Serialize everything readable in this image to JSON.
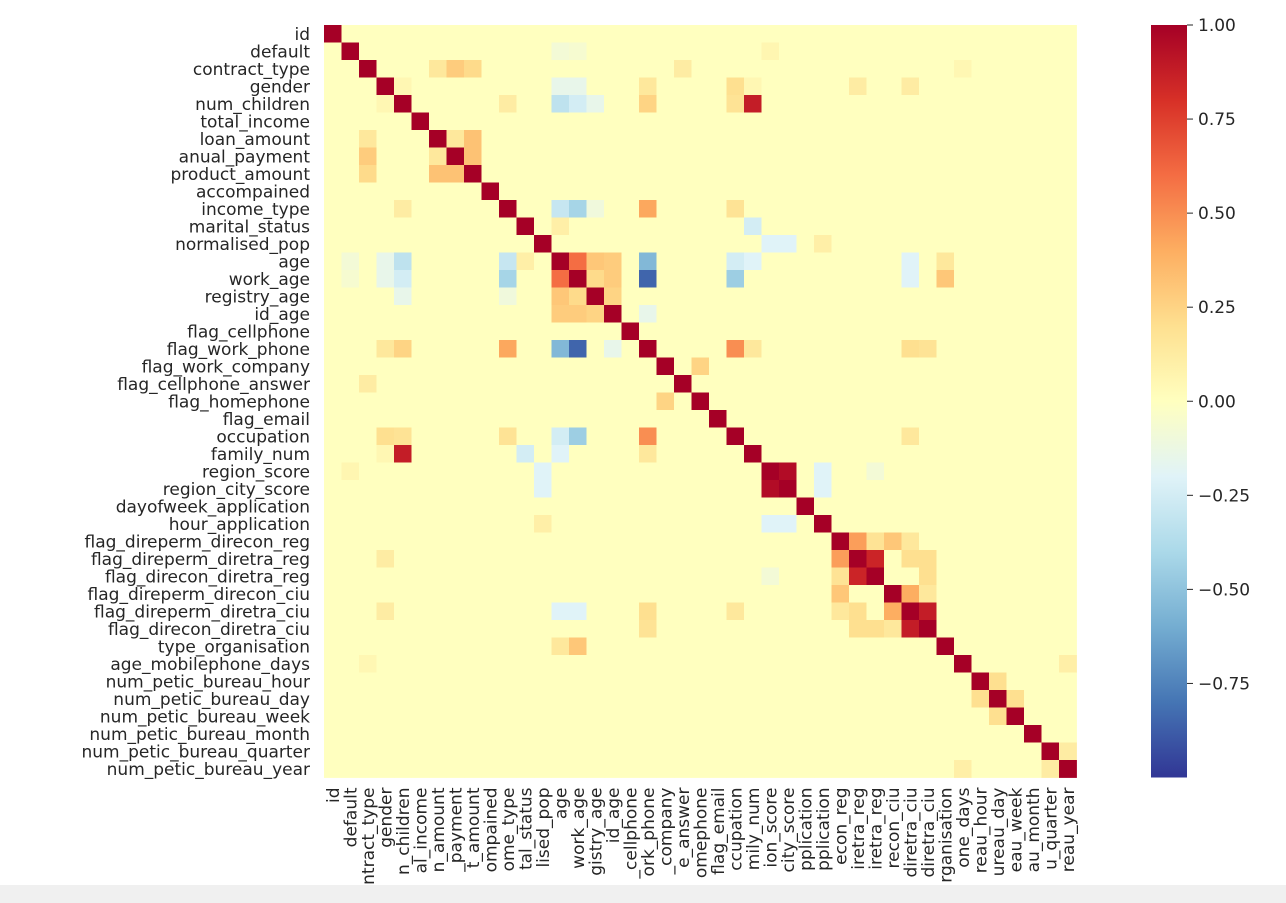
{
  "chart_data": {
    "type": "heatmap",
    "title": "",
    "xlabel": "",
    "ylabel": "",
    "labels": [
      "id",
      "default",
      "contract_type",
      "gender",
      "num_children",
      "total_income",
      "loan_amount",
      "anual_payment",
      "product_amount",
      "accompained",
      "income_type",
      "marital_status",
      "normalised_pop",
      "age",
      "work_age",
      "registry_age",
      "id_age",
      "flag_cellphone",
      "flag_work_phone",
      "flag_work_company",
      "flag_cellphone_answer",
      "flag_homephone",
      "flag_email",
      "occupation",
      "family_num",
      "region_score",
      "region_city_score",
      "dayofweek_application",
      "hour_application",
      "flag_direperm_direcon_reg",
      "flag_direperm_diretra_reg",
      "flag_direcon_diretra_reg",
      "flag_direperm_direcon_ciu",
      "flag_direperm_diretra_ciu",
      "flag_direcon_diretra_ciu",
      "type_organisation",
      "age_mobilephone_days",
      "num_petic_bureau_hour",
      "num_petic_bureau_day",
      "num_petic_bureau_week",
      "num_petic_bureau_month",
      "num_petic_bureau_quarter",
      "num_petic_bureau_year"
    ],
    "x_tick_labels": [
      "id",
      "default",
      "ntract_type",
      "gender",
      "n_children",
      "al_income",
      "n_amount",
      "_payment",
      "t_amount",
      "ompained",
      "ome_type",
      "tal_status",
      "lised_pop",
      "age",
      "work_age",
      "gistry_age",
      "id_age",
      "_cellphone",
      "ork_phone",
      "_company",
      "e_answer",
      "omephone",
      "flag_email",
      "ccupation",
      "mily_num",
      "ion_score",
      "city_score",
      "pplication",
      "pplication",
      "econ_reg",
      "iretra_reg",
      "iretra_reg",
      "recon_ciu",
      "diretra_ciu",
      "diretra_ciu",
      "rganisation",
      "one_days",
      "reau_hour",
      "ureau_day",
      "eau_week",
      "au_month",
      "u_quarter",
      "reau_year"
    ],
    "colorbar": {
      "colormap": "RdYlBu_r",
      "min": -1.0,
      "max": 1.0,
      "ticks": [
        1.0,
        0.75,
        0.5,
        0.25,
        0.0,
        -0.25,
        -0.5,
        -0.75
      ],
      "tick_labels": [
        "1.00",
        "0.75",
        "0.50",
        "0.25",
        "0.00",
        "−0.25",
        "−0.50",
        "−0.75"
      ]
    },
    "default_value": 0.0,
    "correlations": [
      [
        "contract_type",
        "anual_payment",
        0.28
      ],
      [
        "contract_type",
        "product_amount",
        0.22
      ],
      [
        "contract_type",
        "loan_amount",
        0.15
      ],
      [
        "contract_type",
        "flag_cellphone_answer",
        0.12
      ],
      [
        "default",
        "age",
        -0.08
      ],
      [
        "default",
        "work_age",
        -0.06
      ],
      [
        "default",
        "region_score",
        0.06
      ],
      [
        "gender",
        "num_children",
        0.05
      ],
      [
        "gender",
        "age",
        -0.15
      ],
      [
        "gender",
        "work_age",
        -0.15
      ],
      [
        "gender",
        "flag_work_phone",
        0.15
      ],
      [
        "gender",
        "occupation",
        0.2
      ],
      [
        "gender",
        "flag_direperm_diretra_reg",
        0.12
      ],
      [
        "gender",
        "flag_direperm_diretra_ciu",
        0.12
      ],
      [
        "gender",
        "family_num",
        0.05
      ],
      [
        "num_children",
        "family_num",
        0.88
      ],
      [
        "num_children",
        "age",
        -0.33
      ],
      [
        "num_children",
        "work_age",
        -0.25
      ],
      [
        "num_children",
        "registry_age",
        -0.15
      ],
      [
        "num_children",
        "flag_work_phone",
        0.25
      ],
      [
        "num_children",
        "income_type",
        0.12
      ],
      [
        "num_children",
        "occupation",
        0.18
      ],
      [
        "loan_amount",
        "anual_payment",
        0.15
      ],
      [
        "loan_amount",
        "product_amount",
        0.32
      ],
      [
        "anual_payment",
        "product_amount",
        0.32
      ],
      [
        "income_type",
        "age",
        -0.3
      ],
      [
        "income_type",
        "work_age",
        -0.42
      ],
      [
        "income_type",
        "flag_work_phone",
        0.42
      ],
      [
        "income_type",
        "occupation",
        0.18
      ],
      [
        "income_type",
        "registry_age",
        -0.1
      ],
      [
        "marital_status",
        "family_num",
        -0.25
      ],
      [
        "marital_status",
        "age",
        0.1
      ],
      [
        "normalised_pop",
        "region_score",
        -0.2
      ],
      [
        "normalised_pop",
        "region_city_score",
        -0.2
      ],
      [
        "normalised_pop",
        "hour_application",
        0.1
      ],
      [
        "age",
        "work_age",
        0.6
      ],
      [
        "age",
        "registry_age",
        0.3
      ],
      [
        "age",
        "id_age",
        0.28
      ],
      [
        "age",
        "flag_work_phone",
        -0.55
      ],
      [
        "age",
        "occupation",
        -0.25
      ],
      [
        "age",
        "family_num",
        -0.2
      ],
      [
        "age",
        "type_organisation",
        0.15
      ],
      [
        "age",
        "flag_direperm_diretra_ciu",
        -0.2
      ],
      [
        "work_age",
        "registry_age",
        0.22
      ],
      [
        "work_age",
        "id_age",
        0.28
      ],
      [
        "work_age",
        "flag_work_phone",
        -0.85
      ],
      [
        "work_age",
        "occupation",
        -0.45
      ],
      [
        "work_age",
        "type_organisation",
        0.3
      ],
      [
        "work_age",
        "flag_direperm_diretra_ciu",
        -0.2
      ],
      [
        "registry_age",
        "id_age",
        0.25
      ],
      [
        "id_age",
        "flag_work_phone",
        -0.15
      ],
      [
        "flag_work_phone",
        "occupation",
        0.5
      ],
      [
        "flag_work_phone",
        "family_num",
        0.15
      ],
      [
        "flag_work_phone",
        "flag_direperm_diretra_ciu",
        0.2
      ],
      [
        "flag_work_phone",
        "flag_direcon_diretra_ciu",
        0.18
      ],
      [
        "flag_work_company",
        "flag_homephone",
        0.25
      ],
      [
        "occupation",
        "flag_direperm_diretra_ciu",
        0.15
      ],
      [
        "region_score",
        "region_city_score",
        0.95
      ],
      [
        "region_score",
        "hour_application",
        -0.2
      ],
      [
        "region_city_score",
        "hour_application",
        -0.2
      ],
      [
        "region_score",
        "flag_direcon_diretra_reg",
        -0.08
      ],
      [
        "flag_direperm_direcon_reg",
        "flag_direperm_diretra_reg",
        0.45
      ],
      [
        "flag_direperm_direcon_reg",
        "flag_direcon_diretra_reg",
        0.18
      ],
      [
        "flag_direperm_direcon_reg",
        "flag_direperm_direcon_ciu",
        0.3
      ],
      [
        "flag_direperm_direcon_reg",
        "flag_direperm_diretra_ciu",
        0.15
      ],
      [
        "flag_direperm_diretra_reg",
        "flag_direcon_diretra_reg",
        0.85
      ],
      [
        "flag_direperm_diretra_reg",
        "flag_direperm_diretra_ciu",
        0.2
      ],
      [
        "flag_direperm_diretra_reg",
        "flag_direcon_diretra_ciu",
        0.2
      ],
      [
        "flag_direcon_diretra_reg",
        "flag_direcon_diretra_ciu",
        0.2
      ],
      [
        "flag_direperm_direcon_ciu",
        "flag_direperm_diretra_ciu",
        0.4
      ],
      [
        "flag_direperm_direcon_ciu",
        "flag_direcon_diretra_ciu",
        0.15
      ],
      [
        "flag_direperm_diretra_ciu",
        "flag_direcon_diretra_ciu",
        0.88
      ],
      [
        "num_petic_bureau_hour",
        "num_petic_bureau_day",
        0.2
      ],
      [
        "num_petic_bureau_day",
        "num_petic_bureau_week",
        0.2
      ],
      [
        "num_petic_bureau_quarter",
        "num_petic_bureau_year",
        0.12
      ],
      [
        "age_mobilephone_days",
        "num_petic_bureau_year",
        0.1
      ],
      [
        "age_mobilephone_days",
        "contract_type",
        0.05
      ]
    ]
  }
}
